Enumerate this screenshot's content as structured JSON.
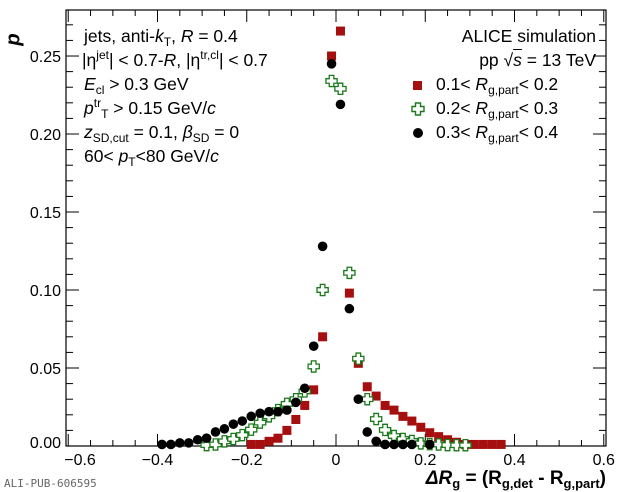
{
  "chart_data": {
    "type": "scatter",
    "title": "",
    "xlabel": "ΔR_g = (R_g,det - R_g,part)",
    "ylabel": "p",
    "xlim": [
      -0.605,
      0.605
    ],
    "ylim": [
      0,
      0.2795
    ],
    "xticks": [
      -0.6,
      -0.4,
      -0.2,
      0,
      0.2,
      0.4,
      0.6
    ],
    "xtick_labels": [
      "−0.6",
      "−0.4",
      "−0.2",
      "0",
      "0.2",
      "0.4",
      "0.6"
    ],
    "yticks": [
      0,
      0.05,
      0.1,
      0.15,
      0.2,
      0.25
    ],
    "ytick_labels": [
      "0.00",
      "0.05",
      "0.10",
      "0.15",
      "0.20",
      "0.25"
    ],
    "legend_position": "top-right",
    "series": [
      {
        "name": "0.1< R_g,part< 0.2",
        "marker": "square",
        "color": "#a50f0f",
        "x": [
          -0.19,
          -0.17,
          -0.15,
          -0.13,
          -0.11,
          -0.09,
          -0.07,
          -0.05,
          -0.03,
          -0.01,
          0.01,
          0.03,
          0.05,
          0.07,
          0.09,
          0.11,
          0.13,
          0.15,
          0.17,
          0.19,
          0.21,
          0.23,
          0.25,
          0.27,
          0.29,
          0.31,
          0.33,
          0.35,
          0.37
        ],
        "y": [
          0.001,
          0.001,
          0.003,
          0.005,
          0.01,
          0.017,
          0.026,
          0.036,
          0.07,
          0.25,
          0.266,
          0.098,
          0.053,
          0.038,
          0.032,
          0.026,
          0.023,
          0.019,
          0.016,
          0.012,
          0.0085,
          0.006,
          0.004,
          0.0024,
          0.001,
          0.001,
          0.001,
          0.001,
          0.001
        ]
      },
      {
        "name": "0.2< R_g,part< 0.3",
        "marker": "open-cross",
        "color": "#1a7a1a",
        "x": [
          -0.29,
          -0.27,
          -0.25,
          -0.23,
          -0.21,
          -0.19,
          -0.17,
          -0.15,
          -0.13,
          -0.11,
          -0.09,
          -0.07,
          -0.05,
          -0.03,
          -0.01,
          0.01,
          0.03,
          0.05,
          0.07,
          0.09,
          0.11,
          0.13,
          0.15,
          0.17,
          0.19,
          0.21,
          0.23,
          0.25,
          0.27,
          0.29
        ],
        "y": [
          0.0006,
          0.001,
          0.003,
          0.0045,
          0.007,
          0.0105,
          0.015,
          0.019,
          0.023,
          0.027,
          0.03,
          0.035,
          0.051,
          0.1,
          0.234,
          0.229,
          0.111,
          0.056,
          0.03,
          0.0173,
          0.0103,
          0.0064,
          0.0045,
          0.0032,
          0.0017,
          0.0012,
          0.001,
          0.0006,
          0.0005,
          0.0005
        ]
      },
      {
        "name": "0.3< R_g,part< 0.4",
        "marker": "circle",
        "color": "#000000",
        "x": [
          -0.39,
          -0.37,
          -0.35,
          -0.33,
          -0.31,
          -0.29,
          -0.27,
          -0.25,
          -0.23,
          -0.21,
          -0.19,
          -0.17,
          -0.15,
          -0.13,
          -0.11,
          -0.09,
          -0.07,
          -0.05,
          -0.03,
          -0.01,
          0.01,
          0.03,
          0.05,
          0.07,
          0.09,
          0.11,
          0.13,
          0.15,
          0.17,
          0.21
        ],
        "y": [
          0.001,
          0.001,
          0.002,
          0.002,
          0.004,
          0.005,
          0.009,
          0.011,
          0.014,
          0.016,
          0.019,
          0.021,
          0.022,
          0.022,
          0.023,
          0.028,
          0.037,
          0.064,
          0.128,
          0.245,
          0.219,
          0.088,
          0.03,
          0.009,
          0.003,
          0.001,
          0.001,
          0.001,
          0.001,
          0.001
        ]
      }
    ]
  },
  "annotations": {
    "line1": {
      "a": "jets, anti-",
      "k": "k",
      "ksub": "T",
      "b": ", ",
      "R": "R",
      "c": " = 0.4"
    },
    "line2": {
      "a": "|η",
      "sup1": "jet",
      "b": "| < 0.7-",
      "R": "R",
      "c": ", |η",
      "sup2": "tr,cl",
      "d": "| < 0.7"
    },
    "line3": {
      "E": "E",
      "sub": "cl",
      "c": " > 0.3 GeV"
    },
    "line4": {
      "p": "p",
      "sup": "tr",
      "sub": "T",
      "c": " > 0.15 GeV/",
      "unit": "c"
    },
    "line5": {
      "z": "z",
      "sub": "SD,cut",
      "b": " = 0.1, ",
      "beta": "β",
      "sub2": "SD",
      "c": " = 0"
    },
    "line6": {
      "a": "60< ",
      "p": "p",
      "sub": "T",
      "b": "<80 GeV/",
      "unit": "c"
    }
  },
  "legend": {
    "header1": "ALICE simulation",
    "header2_a": "pp  √",
    "header2_s": "s",
    "header2_b": " = 13 TeV",
    "entries": [
      {
        "lo": "0.1< ",
        "R": "R",
        "sub": "g,part",
        "hi": "< 0.2"
      },
      {
        "lo": "0.2< ",
        "R": "R",
        "sub": "g,part",
        "hi": "< 0.3"
      },
      {
        "lo": "0.3< ",
        "R": "R",
        "sub": "g,part",
        "hi": "< 0.4"
      }
    ]
  },
  "axis_titles": {
    "y": "p",
    "x_delta": "ΔR",
    "x_g": "g",
    "x_eq": " = (R",
    "x_det": "g,det",
    "x_mid": " -  R",
    "x_part": "g,part",
    "x_end": ")"
  },
  "footer": {
    "pub_id": "ALI-PUB-606595"
  }
}
